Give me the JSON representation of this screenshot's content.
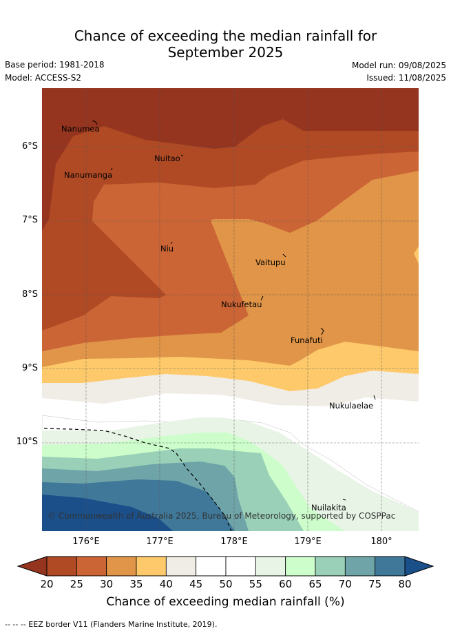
{
  "title_line1": "Chance of exceeding the median rainfall for",
  "title_line2": "September 2025",
  "base_period": "Base period: 1981-2018",
  "model": "Model: ACCESS-S2",
  "model_run": "Model run: 09/08/2025",
  "issued": "Issued: 11/08/2025",
  "lat_labels": [
    "6°S",
    "7°S",
    "8°S",
    "9°S",
    "10°S"
  ],
  "lon_labels": [
    "176°E",
    "177°E",
    "178°E",
    "179°E",
    "180°"
  ],
  "places": {
    "nanumea": "Nanumea",
    "nuitao": "Nuitao",
    "nanumanga": "Nanumanga",
    "niu": "Niu",
    "vaitupu": "Vaitupu",
    "nukufetau": "Nukufetau",
    "funafuti": "Funafuti",
    "nukulaelae": "Nukulaelae",
    "nuilakita": "Nuilakita"
  },
  "copyright": "© Commonwealth of Australia 2025, Bureau of Meteorology, supported by COSPPac",
  "colorbar": {
    "ticks": [
      "20",
      "25",
      "30",
      "35",
      "40",
      "45",
      "50",
      "55",
      "60",
      "65",
      "70",
      "75",
      "80"
    ],
    "label": "Chance of exceeding median rainfall (%)",
    "colors": [
      "#953520",
      "#b04a25",
      "#cc6535",
      "#e09548",
      "#fdc96a",
      "#f0ece6",
      "#ffffff",
      "#ffffff",
      "#e8f4e6",
      "#ccfdcb",
      "#9ad0b8",
      "#6fa5a8",
      "#40789a",
      "#1a4f8a"
    ]
  },
  "eez_note": "--  --  -- EEZ border V11 (Flanders Marine Institute, 2019)."
}
